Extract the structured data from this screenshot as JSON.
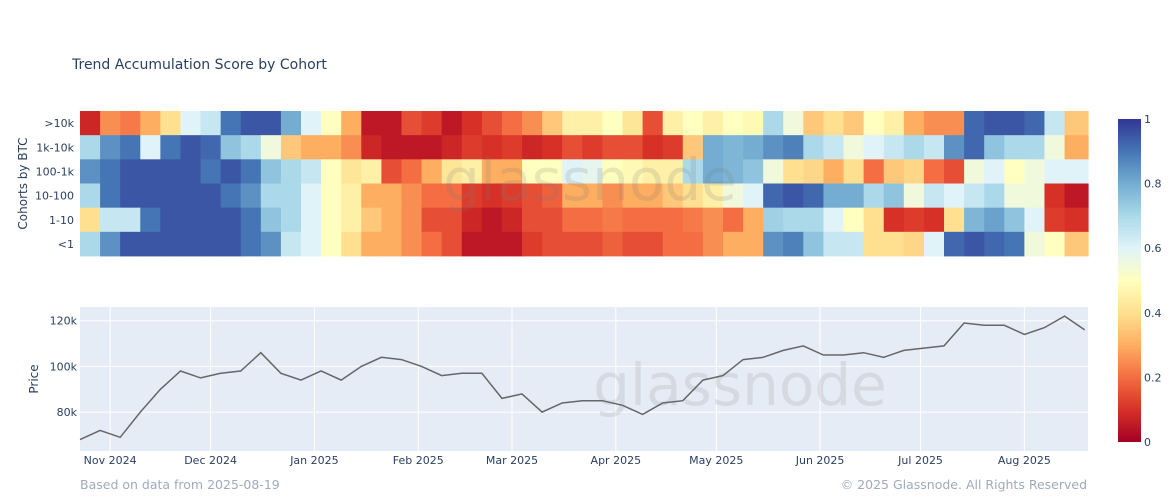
{
  "chart_data": [
    {
      "type": "heatmap",
      "title": "Trend Accumulation Score by Cohort",
      "ylabel": "Cohorts by BTC",
      "rows": [
        ">10k",
        "1k-10k",
        "100-1k",
        "10-100",
        "1-10",
        "<1"
      ],
      "x": [
        "2024-10-23",
        "2024-10-29",
        "2024-11-04",
        "2024-11-10",
        "2024-11-16",
        "2024-11-22",
        "2024-11-28",
        "2024-12-04",
        "2024-12-10",
        "2024-12-16",
        "2024-12-22",
        "2024-12-28",
        "2025-01-03",
        "2025-01-09",
        "2025-01-15",
        "2025-01-21",
        "2025-01-27",
        "2025-02-02",
        "2025-02-08",
        "2025-02-14",
        "2025-02-20",
        "2025-02-26",
        "2025-03-04",
        "2025-03-10",
        "2025-03-16",
        "2025-03-22",
        "2025-03-28",
        "2025-04-03",
        "2025-04-09",
        "2025-04-15",
        "2025-04-21",
        "2025-04-27",
        "2025-05-03",
        "2025-05-09",
        "2025-05-15",
        "2025-05-21",
        "2025-05-27",
        "2025-06-02",
        "2025-06-08",
        "2025-06-14",
        "2025-06-20",
        "2025-06-26",
        "2025-07-02",
        "2025-07-08",
        "2025-07-14",
        "2025-07-20",
        "2025-07-26",
        "2025-08-01",
        "2025-08-07",
        "2025-08-13"
      ],
      "z": [
        [
          0.08,
          0.25,
          0.22,
          0.3,
          0.4,
          0.6,
          0.65,
          0.9,
          0.95,
          0.95,
          0.8,
          0.6,
          0.5,
          0.3,
          0.05,
          0.05,
          0.15,
          0.12,
          0.05,
          0.1,
          0.15,
          0.2,
          0.25,
          0.35,
          0.45,
          0.45,
          0.5,
          0.42,
          0.15,
          0.45,
          0.5,
          0.45,
          0.5,
          0.48,
          0.7,
          0.55,
          0.35,
          0.4,
          0.35,
          0.5,
          0.45,
          0.3,
          0.25,
          0.25,
          0.92,
          0.95,
          0.95,
          0.92,
          0.65,
          0.35
        ],
        [
          0.7,
          0.85,
          0.9,
          0.6,
          0.9,
          0.95,
          0.92,
          0.75,
          0.7,
          0.55,
          0.35,
          0.3,
          0.3,
          0.25,
          0.08,
          0.05,
          0.05,
          0.05,
          0.08,
          0.12,
          0.1,
          0.12,
          0.08,
          0.1,
          0.15,
          0.12,
          0.15,
          0.15,
          0.1,
          0.12,
          0.35,
          0.8,
          0.78,
          0.8,
          0.85,
          0.88,
          0.7,
          0.65,
          0.55,
          0.6,
          0.65,
          0.7,
          0.65,
          0.85,
          0.92,
          0.75,
          0.7,
          0.7,
          0.55,
          0.3
        ],
        [
          0.85,
          0.9,
          0.95,
          0.95,
          0.95,
          0.95,
          0.9,
          0.95,
          0.9,
          0.75,
          0.7,
          0.65,
          0.5,
          0.42,
          0.45,
          0.15,
          0.2,
          0.3,
          0.42,
          0.45,
          0.3,
          0.3,
          0.5,
          0.5,
          0.6,
          0.58,
          0.5,
          0.48,
          0.45,
          0.45,
          0.7,
          0.8,
          0.78,
          0.75,
          0.55,
          0.4,
          0.38,
          0.3,
          0.4,
          0.2,
          0.35,
          0.38,
          0.2,
          0.15,
          0.55,
          0.6,
          0.5,
          0.55,
          0.6,
          0.6
        ],
        [
          0.7,
          0.9,
          0.95,
          0.95,
          0.95,
          0.95,
          0.95,
          0.9,
          0.85,
          0.7,
          0.7,
          0.6,
          0.5,
          0.45,
          0.3,
          0.3,
          0.25,
          0.2,
          0.2,
          0.12,
          0.1,
          0.12,
          0.15,
          0.18,
          0.3,
          0.3,
          0.25,
          0.3,
          0.3,
          0.35,
          0.4,
          0.45,
          0.55,
          0.6,
          0.92,
          0.95,
          0.92,
          0.8,
          0.8,
          0.7,
          0.75,
          0.55,
          0.65,
          0.6,
          0.65,
          0.7,
          0.55,
          0.55,
          0.1,
          0.05
        ],
        [
          0.4,
          0.65,
          0.65,
          0.9,
          0.95,
          0.95,
          0.95,
          0.95,
          0.9,
          0.75,
          0.7,
          0.6,
          0.5,
          0.45,
          0.35,
          0.3,
          0.25,
          0.15,
          0.15,
          0.08,
          0.05,
          0.08,
          0.15,
          0.15,
          0.2,
          0.2,
          0.22,
          0.2,
          0.2,
          0.2,
          0.22,
          0.25,
          0.2,
          0.3,
          0.72,
          0.7,
          0.7,
          0.6,
          0.5,
          0.4,
          0.1,
          0.12,
          0.1,
          0.4,
          0.78,
          0.82,
          0.75,
          0.6,
          0.12,
          0.1
        ],
        [
          0.7,
          0.85,
          0.95,
          0.95,
          0.95,
          0.95,
          0.95,
          0.95,
          0.9,
          0.85,
          0.65,
          0.6,
          0.5,
          0.4,
          0.3,
          0.3,
          0.25,
          0.2,
          0.15,
          0.05,
          0.05,
          0.05,
          0.12,
          0.15,
          0.15,
          0.15,
          0.18,
          0.15,
          0.15,
          0.2,
          0.2,
          0.25,
          0.3,
          0.3,
          0.85,
          0.88,
          0.75,
          0.65,
          0.65,
          0.4,
          0.4,
          0.38,
          0.6,
          0.92,
          0.95,
          0.92,
          0.9,
          0.55,
          0.5,
          0.35
        ]
      ],
      "colorscale": "RdYlBu",
      "colors": [
        "#a50026",
        "#d73027",
        "#f46d43",
        "#fdae61",
        "#fee090",
        "#ffffbf",
        "#e0f3f8",
        "#abd9e9",
        "#74add1",
        "#4575b4",
        "#313695"
      ],
      "zlim": [
        0,
        1
      ],
      "colorbar_ticks": [
        "0",
        "0.2",
        "0.4",
        "0.6",
        "0.8",
        "1"
      ]
    },
    {
      "type": "line",
      "ylabel": "Price",
      "ylim": [
        63000,
        126000
      ],
      "yticks": [
        {
          "v": 80000,
          "label": "80k"
        },
        {
          "v": 100000,
          "label": "100k"
        },
        {
          "v": 120000,
          "label": "120k"
        }
      ],
      "xlim": [
        "2024-10-23",
        "2025-08-20"
      ],
      "xticks": [
        {
          "d": "2024-11-01",
          "label": "Nov 2024"
        },
        {
          "d": "2024-12-01",
          "label": "Dec 2024"
        },
        {
          "d": "2025-01-01",
          "label": "Jan 2025"
        },
        {
          "d": "2025-02-01",
          "label": "Feb 2025"
        },
        {
          "d": "2025-03-01",
          "label": "Mar 2025"
        },
        {
          "d": "2025-04-01",
          "label": "Apr 2025"
        },
        {
          "d": "2025-05-01",
          "label": "May 2025"
        },
        {
          "d": "2025-06-01",
          "label": "Jun 2025"
        },
        {
          "d": "2025-07-01",
          "label": "Jul 2025"
        },
        {
          "d": "2025-08-01",
          "label": "Aug 2025"
        }
      ],
      "grid": true,
      "line_color": "#666666",
      "background": "#e5ecf6",
      "x": [
        "2024-10-23",
        "2024-10-29",
        "2024-11-04",
        "2024-11-10",
        "2024-11-16",
        "2024-11-22",
        "2024-11-28",
        "2024-12-04",
        "2024-12-10",
        "2024-12-16",
        "2024-12-22",
        "2024-12-28",
        "2025-01-03",
        "2025-01-09",
        "2025-01-15",
        "2025-01-21",
        "2025-01-27",
        "2025-02-02",
        "2025-02-08",
        "2025-02-14",
        "2025-02-20",
        "2025-02-26",
        "2025-03-04",
        "2025-03-10",
        "2025-03-16",
        "2025-03-22",
        "2025-03-28",
        "2025-04-03",
        "2025-04-09",
        "2025-04-15",
        "2025-04-21",
        "2025-04-27",
        "2025-05-03",
        "2025-05-09",
        "2025-05-15",
        "2025-05-21",
        "2025-05-27",
        "2025-06-02",
        "2025-06-08",
        "2025-06-14",
        "2025-06-20",
        "2025-06-26",
        "2025-07-02",
        "2025-07-08",
        "2025-07-14",
        "2025-07-20",
        "2025-07-26",
        "2025-08-01",
        "2025-08-07",
        "2025-08-13",
        "2025-08-19"
      ],
      "values": [
        68000,
        72000,
        69000,
        80000,
        90000,
        98000,
        95000,
        97000,
        98000,
        106000,
        97000,
        94000,
        98000,
        94000,
        100000,
        104000,
        103000,
        100000,
        96000,
        97000,
        97000,
        86000,
        88000,
        80000,
        84000,
        85000,
        85000,
        83000,
        79000,
        84000,
        85000,
        94000,
        96000,
        103000,
        104000,
        107000,
        109000,
        105000,
        105000,
        106000,
        104000,
        107000,
        108000,
        109000,
        119000,
        118000,
        118000,
        114000,
        117000,
        122000,
        116000
      ]
    }
  ],
  "watermark": "glassnode",
  "footer": {
    "left": "Based on data from 2025-08-19",
    "right": "© 2025 Glassnode. All Rights Reserved"
  }
}
